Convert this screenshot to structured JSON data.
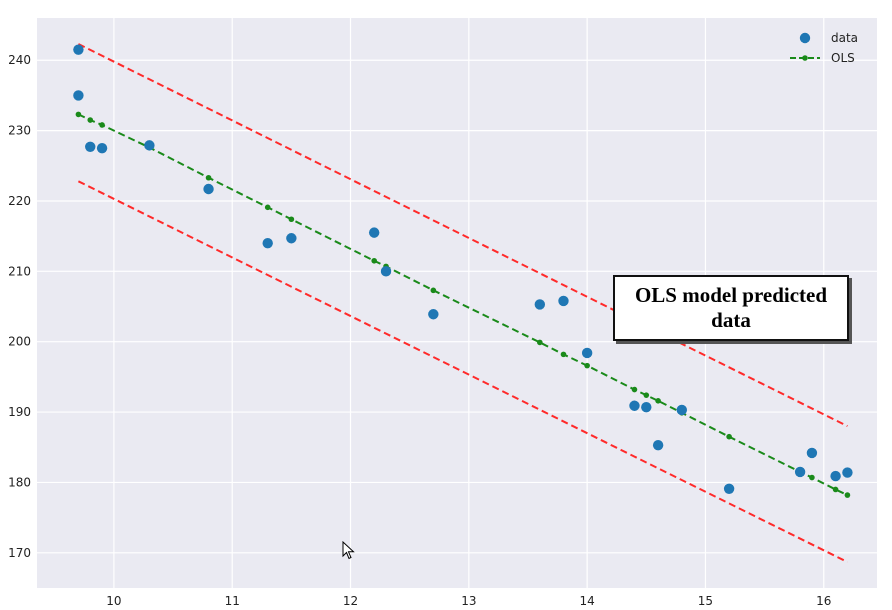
{
  "chart_data": {
    "type": "scatter",
    "title": "",
    "xlabel": "",
    "ylabel": "",
    "xlim": [
      9.35,
      16.45
    ],
    "ylim": [
      165,
      246
    ],
    "x_ticks": [
      10,
      11,
      12,
      13,
      14,
      15,
      16
    ],
    "y_ticks": [
      170,
      180,
      190,
      200,
      210,
      220,
      230,
      240
    ],
    "grid": true,
    "legend_placement": "top-right",
    "series": [
      {
        "name": "data",
        "kind": "scatter",
        "color": "#1f77b4",
        "x": [
          9.7,
          9.7,
          9.8,
          9.9,
          10.3,
          10.8,
          11.3,
          11.5,
          12.2,
          12.3,
          12.7,
          13.6,
          13.8,
          14.0,
          14.4,
          14.5,
          14.6,
          14.8,
          15.2,
          15.8,
          15.9,
          16.1,
          16.2
        ],
        "y": [
          241.5,
          235.0,
          227.7,
          227.5,
          227.9,
          221.7,
          214.0,
          214.7,
          215.5,
          210.0,
          203.9,
          205.3,
          205.8,
          198.4,
          190.9,
          190.7,
          185.3,
          190.3,
          179.1,
          181.5,
          184.2,
          180.9,
          181.4
        ]
      },
      {
        "name": "OLS",
        "kind": "line",
        "style": "dashed",
        "marker": "dot",
        "color": "#1a8a1a",
        "x": [
          9.7,
          9.8,
          9.9,
          10.3,
          10.8,
          11.3,
          11.5,
          12.2,
          12.3,
          12.7,
          13.6,
          13.8,
          14.0,
          14.4,
          14.5,
          14.6,
          14.8,
          15.2,
          15.8,
          15.9,
          16.1,
          16.2
        ],
        "y": [
          232.3,
          231.5,
          230.8,
          227.6,
          223.3,
          219.1,
          217.4,
          211.5,
          210.7,
          207.3,
          199.9,
          198.2,
          196.6,
          193.2,
          192.4,
          191.6,
          189.9,
          186.5,
          181.5,
          180.7,
          179.0,
          178.2
        ]
      },
      {
        "name": "",
        "kind": "line",
        "style": "dashed",
        "color": "#ff2a2a",
        "x": [
          9.7,
          16.2
        ],
        "y": [
          242.3,
          188.0
        ]
      },
      {
        "name": "",
        "kind": "line",
        "style": "dashed",
        "color": "#ff2a2a",
        "x": [
          9.7,
          16.2
        ],
        "y": [
          222.8,
          168.7
        ]
      }
    ],
    "annotations": [
      {
        "text_lines": [
          "OLS model predicted",
          "data"
        ]
      }
    ]
  },
  "colors": {
    "plot_background": "#eaeaf2",
    "grid": "#ffffff"
  },
  "icons": {
    "cursor": "mouse-pointer-icon"
  }
}
